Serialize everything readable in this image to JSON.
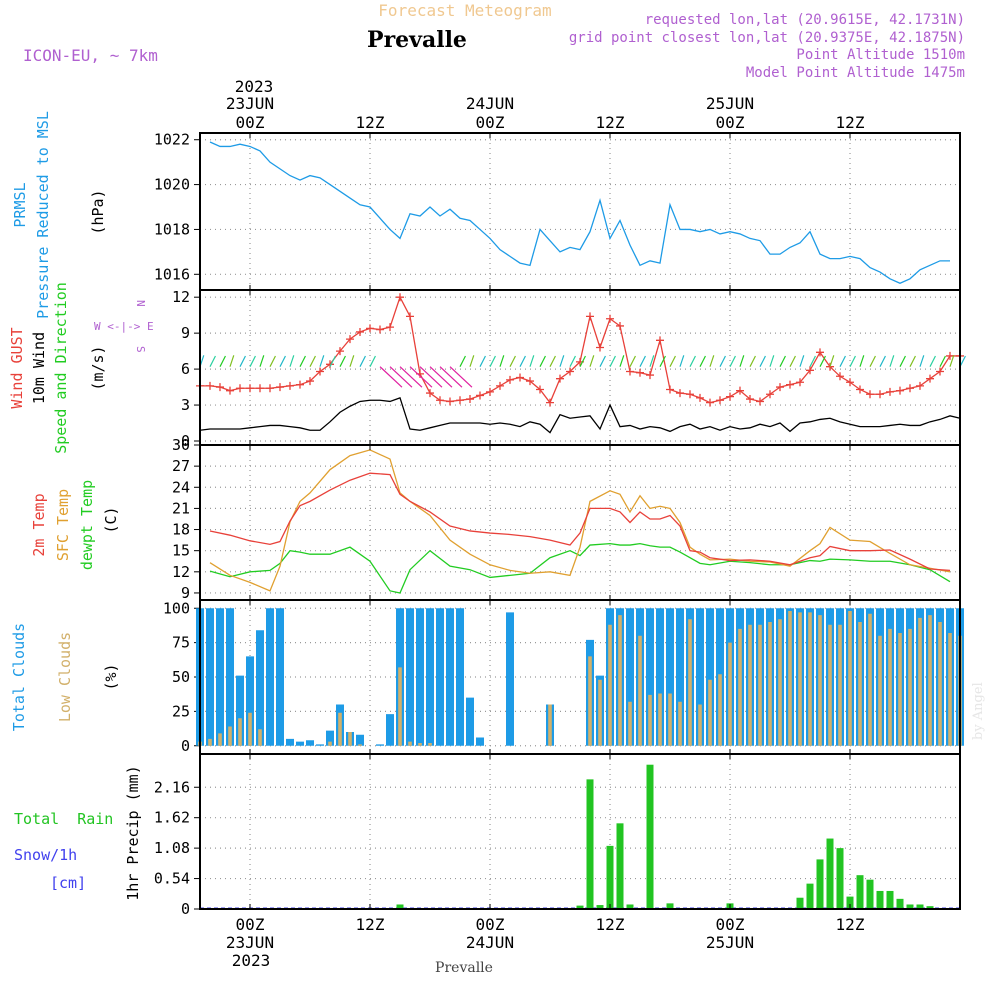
{
  "header": {
    "forecast_label": "Forecast Meteogram",
    "location": "Prevalle",
    "model": "ICON-EU, ~ 7km",
    "requested": "requested lon,lat (20.9615E, 42.1731N)",
    "grid": "grid point closest lon,lat (20.9375E, 42.1875N)",
    "point_alt": "Point Altitude 1510m",
    "model_alt": "Model Point Altitude 1475m"
  },
  "footer": {
    "location": "Prevalle",
    "watermark": "by Angel"
  },
  "time_axis": {
    "top_year": "2023",
    "bottom_year": "2023",
    "ticks": [
      {
        "hour": 0,
        "label": "00Z",
        "date": "23JUN"
      },
      {
        "hour": 12,
        "label": "12Z",
        "date": ""
      },
      {
        "hour": 24,
        "label": "00Z",
        "date": "24JUN"
      },
      {
        "hour": 36,
        "label": "12Z",
        "date": ""
      },
      {
        "hour": 48,
        "label": "00Z",
        "date": "25JUN"
      },
      {
        "hour": 60,
        "label": "12Z",
        "date": ""
      }
    ],
    "range_hours": [
      -5,
      71
    ]
  },
  "panels": {
    "pressure": {
      "label1": "PRMSL",
      "label2": "Pressure Reduced to MSL",
      "unit": "(hPa)"
    },
    "wind": {
      "label_gust": "Wind GUST",
      "label_wind": "10m Wind",
      "label_dir": "Speed and Direction",
      "unit": "(m/s)",
      "compass_n": "N",
      "compass_we": "W <-|-> E",
      "compass_s": "S"
    },
    "temp": {
      "label_t2m": "2m Temp",
      "label_sfc": "SFC Temp",
      "label_dew": "dewpt Temp",
      "unit": "(C)"
    },
    "clouds": {
      "label_total": "Total Clouds",
      "label_low": "Low Clouds",
      "unit": "(%)"
    },
    "precip": {
      "label_rain": "Total  Rain",
      "label_snow": "Snow/1h",
      "label_cm": "[cm]",
      "unit": "1hr Precip (mm)"
    }
  },
  "colors": {
    "pressure": "#1e9be6",
    "gust": "#e8413a",
    "wind": "#000000",
    "temp2m": "#e8413a",
    "sfc": "#e0a030",
    "dew": "#22cc22",
    "cloud_total": "#1e9be6",
    "cloud_low": "#d2b06a",
    "rain": "#22c422",
    "snow": "#4040ee",
    "header_purple": "#b060d0",
    "header_orange": "#f0c890"
  },
  "chart_data": [
    {
      "type": "line",
      "title": "PRMSL",
      "ylabel": "(hPa)",
      "ylim": [
        1015.3,
        1022.3
      ],
      "yticks": [
        1016,
        1018,
        1020,
        1022
      ],
      "grid": true,
      "x": [
        -4,
        -3,
        -2,
        -1,
        0,
        1,
        2,
        3,
        4,
        5,
        6,
        7,
        8,
        9,
        10,
        11,
        12,
        13,
        14,
        15,
        16,
        17,
        18,
        19,
        20,
        21,
        22,
        23,
        24,
        25,
        26,
        27,
        28,
        29,
        30,
        31,
        32,
        33,
        34,
        35,
        36,
        37,
        38,
        39,
        40,
        41,
        42,
        43,
        44,
        45,
        46,
        47,
        48,
        49,
        50,
        51,
        52,
        53,
        54,
        55,
        56,
        57,
        58,
        59,
        60,
        61,
        62,
        63,
        64,
        65,
        66,
        67,
        68,
        69,
        70
      ],
      "series": [
        {
          "name": "PRMSL",
          "values": [
            1021.9,
            1021.7,
            1021.7,
            1021.8,
            1021.7,
            1021.5,
            1021.0,
            1020.7,
            1020.4,
            1020.2,
            1020.4,
            1020.3,
            1020.0,
            1019.7,
            1019.4,
            1019.1,
            1019.0,
            1018.5,
            1018.0,
            1017.6,
            1018.7,
            1018.6,
            1019.0,
            1018.6,
            1018.9,
            1018.5,
            1018.4,
            1018.0,
            1017.6,
            1017.1,
            1016.8,
            1016.5,
            1016.4,
            1018.0,
            1017.5,
            1017.0,
            1017.2,
            1017.1,
            1017.9,
            1019.3,
            1017.6,
            1018.4,
            1017.3,
            1016.4,
            1016.6,
            1016.5,
            1019.1,
            1018.0,
            1018.0,
            1017.9,
            1018.0,
            1017.8,
            1017.9,
            1017.8,
            1017.6,
            1017.5,
            1016.9,
            1016.9,
            1017.2,
            1017.4,
            1017.9,
            1016.9,
            1016.7,
            1016.7,
            1016.8,
            1016.7,
            1016.3,
            1016.1,
            1015.8,
            1015.6,
            1015.8,
            1016.2,
            1016.4,
            1016.6,
            1016.6
          ]
        }
      ]
    },
    {
      "type": "line",
      "title": "Wind GUST / 10m Wind",
      "ylabel": "(m/s)",
      "ylim": [
        0,
        12.6
      ],
      "yticks": [
        0,
        3,
        6,
        9,
        12
      ],
      "grid": true,
      "x": [
        -5,
        -4,
        -3,
        -2,
        -1,
        0,
        1,
        2,
        3,
        4,
        5,
        6,
        7,
        8,
        9,
        10,
        11,
        12,
        13,
        14,
        15,
        16,
        17,
        18,
        19,
        20,
        21,
        22,
        23,
        24,
        25,
        26,
        27,
        28,
        29,
        30,
        31,
        32,
        33,
        34,
        35,
        36,
        37,
        38,
        39,
        40,
        41,
        42,
        43,
        44,
        45,
        46,
        47,
        48,
        49,
        50,
        51,
        52,
        53,
        54,
        55,
        56,
        57,
        58,
        59,
        60,
        61,
        62,
        63,
        64,
        65,
        66,
        67,
        68,
        69,
        70,
        71
      ],
      "series": [
        {
          "name": "Wind GUST",
          "values": [
            4.6,
            4.6,
            4.5,
            4.2,
            4.4,
            4.4,
            4.4,
            4.4,
            4.5,
            4.6,
            4.7,
            5.0,
            5.8,
            6.4,
            7.5,
            8.5,
            9.1,
            9.4,
            9.3,
            9.5,
            12.0,
            10.4,
            5.6,
            4.0,
            3.4,
            3.3,
            3.4,
            3.5,
            3.8,
            4.1,
            4.6,
            5.1,
            5.3,
            5.0,
            4.3,
            3.2,
            5.2,
            5.8,
            6.6,
            10.4,
            7.8,
            10.2,
            9.6,
            5.8,
            5.7,
            5.5,
            8.4,
            4.3,
            4.0,
            3.9,
            3.6,
            3.2,
            3.4,
            3.7,
            4.2,
            3.5,
            3.3,
            3.9,
            4.5,
            4.7,
            4.9,
            5.9,
            7.4,
            6.2,
            5.4,
            4.9,
            4.3,
            3.9,
            3.9,
            4.1,
            4.2,
            4.4,
            4.6,
            5.2,
            5.8,
            7.1,
            7.1
          ]
        },
        {
          "name": "10m Wind",
          "values": [
            0.9,
            1.0,
            1.0,
            1.0,
            1.0,
            1.1,
            1.2,
            1.3,
            1.3,
            1.2,
            1.1,
            0.9,
            0.9,
            1.6,
            2.4,
            2.9,
            3.3,
            3.4,
            3.4,
            3.3,
            3.6,
            1.0,
            0.9,
            1.1,
            1.3,
            1.5,
            1.5,
            1.5,
            1.5,
            1.4,
            1.5,
            1.4,
            1.2,
            1.6,
            1.4,
            0.7,
            2.2,
            1.9,
            2.0,
            2.1,
            1.0,
            3.0,
            1.2,
            1.3,
            1.0,
            1.2,
            1.1,
            0.8,
            1.2,
            1.4,
            1.0,
            1.2,
            0.9,
            1.2,
            1.0,
            1.1,
            1.4,
            1.2,
            1.5,
            0.8,
            1.5,
            1.6,
            1.8,
            1.9,
            1.6,
            1.4,
            1.2,
            1.2,
            1.2,
            1.3,
            1.4,
            1.3,
            1.3,
            1.6,
            1.8,
            2.1,
            1.9
          ]
        }
      ]
    },
    {
      "type": "line",
      "title": "2m Temp / SFC Temp / dewpt Temp",
      "ylabel": "(C)",
      "ylim": [
        8,
        30
      ],
      "yticks": [
        9,
        12,
        15,
        18,
        21,
        24,
        27,
        30
      ],
      "grid": true,
      "x": [
        -4,
        -2,
        0,
        2,
        3,
        4,
        5,
        6,
        8,
        10,
        12,
        14,
        15,
        16,
        18,
        20,
        22,
        24,
        26,
        28,
        30,
        32,
        33,
        34,
        36,
        37,
        38,
        39,
        40,
        41,
        42,
        43,
        44,
        45,
        46,
        48,
        50,
        52,
        54,
        56,
        57,
        58,
        60,
        62,
        64,
        66,
        68,
        70
      ],
      "series": [
        {
          "name": "2m Temp",
          "values": [
            17.8,
            17.2,
            16.4,
            15.9,
            16.3,
            19.2,
            21.4,
            22.0,
            23.6,
            25.0,
            26.0,
            25.8,
            23.0,
            22.0,
            20.5,
            18.5,
            17.8,
            17.5,
            17.3,
            17.0,
            16.5,
            15.8,
            17.5,
            21.0,
            21.0,
            20.5,
            19.0,
            20.5,
            19.5,
            19.5,
            20.0,
            18.5,
            15.0,
            14.8,
            14.0,
            13.6,
            13.7,
            13.5,
            13.0,
            14.0,
            14.3,
            15.6,
            15.0,
            15.0,
            15.1,
            13.8,
            12.4,
            12.2
          ]
        },
        {
          "name": "SFC Temp",
          "values": [
            13.3,
            11.5,
            10.5,
            9.3,
            12.8,
            19.1,
            22.0,
            23.2,
            26.5,
            28.5,
            29.3,
            28.0,
            23.2,
            22.0,
            20.0,
            16.5,
            14.5,
            13.0,
            12.2,
            11.8,
            12.0,
            11.5,
            15.5,
            22.0,
            23.5,
            23.0,
            20.5,
            22.8,
            21.0,
            21.3,
            21.0,
            19.0,
            15.5,
            14.5,
            13.7,
            13.8,
            13.5,
            13.4,
            12.8,
            15.0,
            16.0,
            18.3,
            16.5,
            16.3,
            14.6,
            13.0,
            12.5,
            12.0
          ]
        },
        {
          "name": "dewpt Temp",
          "values": [
            12.1,
            11.3,
            12.0,
            12.2,
            13.2,
            15.0,
            14.8,
            14.5,
            14.5,
            15.5,
            13.5,
            9.3,
            9.0,
            12.3,
            15.0,
            12.8,
            12.3,
            11.2,
            11.5,
            11.8,
            14.0,
            15.0,
            14.3,
            15.8,
            16.0,
            15.8,
            15.8,
            16.0,
            15.7,
            15.5,
            15.5,
            14.8,
            14.0,
            13.2,
            13.0,
            13.5,
            13.3,
            13.0,
            13.0,
            13.6,
            13.5,
            13.8,
            13.7,
            13.5,
            13.5,
            13.0,
            12.3,
            10.6
          ]
        }
      ]
    },
    {
      "type": "bar",
      "title": "Total Clouds / Low Clouds",
      "ylabel": "(%)",
      "ylim": [
        -6,
        106
      ],
      "yticks": [
        0,
        25,
        50,
        75,
        100
      ],
      "grid": true,
      "categories": [
        -5,
        -4,
        -3,
        -2,
        -1,
        0,
        1,
        2,
        3,
        4,
        5,
        6,
        7,
        8,
        9,
        10,
        11,
        12,
        13,
        14,
        15,
        16,
        17,
        18,
        19,
        20,
        21,
        22,
        23,
        24,
        25,
        26,
        27,
        28,
        29,
        30,
        31,
        32,
        33,
        34,
        35,
        36,
        37,
        38,
        39,
        40,
        41,
        42,
        43,
        44,
        45,
        46,
        47,
        48,
        49,
        50,
        51,
        52,
        53,
        54,
        55,
        56,
        57,
        58,
        59,
        60,
        61,
        62,
        63,
        64,
        65,
        66,
        67,
        68,
        69,
        70,
        71
      ],
      "series": [
        {
          "name": "Total Clouds",
          "values": [
            100,
            100,
            100,
            100,
            51,
            65,
            84,
            100,
            100,
            5,
            3,
            4,
            1,
            11,
            30,
            10,
            8,
            0,
            1,
            23,
            100,
            100,
            100,
            100,
            100,
            100,
            100,
            35,
            6,
            0,
            0,
            97,
            0,
            0,
            0,
            30,
            0,
            0,
            0,
            77,
            51,
            100,
            100,
            100,
            100,
            100,
            100,
            100,
            100,
            100,
            100,
            100,
            100,
            100,
            100,
            100,
            100,
            100,
            100,
            100,
            100,
            100,
            100,
            100,
            100,
            100,
            100,
            100,
            100,
            100,
            100,
            100,
            100,
            100,
            100,
            100,
            100
          ]
        },
        {
          "name": "Low Clouds",
          "values": [
            3,
            5,
            9,
            14,
            20,
            24,
            12,
            0,
            0,
            0,
            0,
            0,
            0,
            3,
            24,
            10,
            1,
            0,
            0,
            0,
            57,
            3,
            2,
            2,
            0,
            0,
            0,
            0,
            0,
            0,
            0,
            0,
            0,
            0,
            0,
            30,
            0,
            0,
            0,
            65,
            48,
            88,
            95,
            32,
            80,
            37,
            38,
            38,
            32,
            92,
            30,
            48,
            52,
            75,
            85,
            88,
            88,
            90,
            92,
            98,
            97,
            97,
            95,
            88,
            88,
            98,
            90,
            96,
            80,
            85,
            82,
            85,
            93,
            95,
            90,
            82,
            80
          ]
        }
      ]
    },
    {
      "type": "bar",
      "title": "1hr Precip",
      "ylabel": "1hr Precip (mm)",
      "ylim": [
        0,
        2.75
      ],
      "yticks": [
        0,
        0.54,
        1.08,
        1.62,
        2.16
      ],
      "grid": true,
      "categories": [
        15,
        33,
        34,
        35,
        36,
        37,
        38,
        40,
        42,
        48,
        55,
        56,
        57,
        58,
        59,
        60,
        61,
        62,
        63,
        64,
        65,
        66,
        67,
        68
      ],
      "series": [
        {
          "name": "Total Rain",
          "values": [
            0.08,
            0.06,
            2.3,
            0.07,
            1.12,
            1.52,
            0.08,
            2.56,
            0.1,
            0.1,
            0.2,
            0.45,
            0.88,
            1.25,
            1.08,
            0.22,
            0.6,
            0.52,
            0.32,
            0.32,
            0.18,
            0.08,
            0.08,
            0.05
          ]
        }
      ]
    }
  ]
}
